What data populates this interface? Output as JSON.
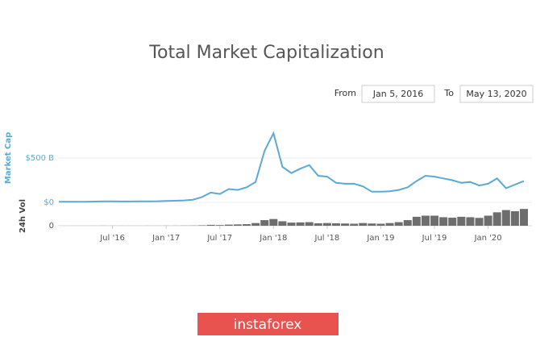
{
  "chart_data": {
    "type": "line",
    "title": "Total Market Capitalization",
    "controls": {
      "from_label": "From",
      "from_value": "Jan 5, 2016",
      "to_label": "To",
      "to_value": "May 13, 2020"
    },
    "y_label": "Market Cap",
    "volume_label": "24h Vol",
    "x": [
      "2016-01",
      "2016-02",
      "2016-03",
      "2016-04",
      "2016-05",
      "2016-06",
      "2016-07",
      "2016-08",
      "2016-09",
      "2016-10",
      "2016-11",
      "2016-12",
      "2017-01",
      "2017-02",
      "2017-03",
      "2017-04",
      "2017-05",
      "2017-06",
      "2017-07",
      "2017-08",
      "2017-09",
      "2017-10",
      "2017-11",
      "2017-12",
      "2018-01",
      "2018-02",
      "2018-03",
      "2018-04",
      "2018-05",
      "2018-06",
      "2018-07",
      "2018-08",
      "2018-09",
      "2018-10",
      "2018-11",
      "2018-12",
      "2019-01",
      "2019-02",
      "2019-03",
      "2019-04",
      "2019-05",
      "2019-06",
      "2019-07",
      "2019-08",
      "2019-09",
      "2019-10",
      "2019-11",
      "2019-12",
      "2020-01",
      "2020-02",
      "2020-03",
      "2020-04",
      "2020-05"
    ],
    "values": [
      7,
      6,
      7,
      7,
      9,
      11,
      11,
      10,
      10,
      11,
      12,
      13,
      16,
      18,
      22,
      30,
      60,
      110,
      95,
      150,
      140,
      170,
      230,
      580,
      780,
      400,
      330,
      380,
      420,
      300,
      290,
      220,
      210,
      210,
      180,
      120,
      120,
      125,
      140,
      170,
      240,
      300,
      290,
      270,
      250,
      220,
      230,
      190,
      210,
      270,
      160,
      200,
      240
    ],
    "volume_values": [
      0.2,
      0.2,
      0.2,
      0.2,
      0.3,
      0.5,
      0.4,
      0.3,
      0.3,
      0.3,
      0.4,
      0.4,
      0.5,
      0.6,
      0.8,
      1,
      2,
      4,
      3,
      5,
      6,
      7,
      12,
      25,
      30,
      20,
      14,
      15,
      16,
      11,
      12,
      11,
      10,
      9,
      12,
      10,
      9,
      12,
      16,
      25,
      40,
      45,
      45,
      38,
      36,
      40,
      38,
      35,
      45,
      60,
      70,
      65,
      75
    ],
    "color": "#5aa9d6",
    "volume_color": "#6d6d6d",
    "xlim": [
      "2016-01",
      "2020-05"
    ],
    "xticks": [
      {
        "value": "2016-07",
        "label": "Jul '16"
      },
      {
        "value": "2017-01",
        "label": "Jan '17"
      },
      {
        "value": "2017-07",
        "label": "Jul '17"
      },
      {
        "value": "2018-01",
        "label": "Jan '18"
      },
      {
        "value": "2018-07",
        "label": "Jul '18"
      },
      {
        "value": "2019-01",
        "label": "Jan '19"
      },
      {
        "value": "2019-07",
        "label": "Jul '19"
      },
      {
        "value": "2020-01",
        "label": "Jan '20"
      }
    ],
    "ylim": [
      0,
      900
    ],
    "yticks": [
      {
        "value": 0,
        "label": "$0"
      },
      {
        "value": 500,
        "label": "$500 B"
      }
    ],
    "y2lim": [
      0,
      90
    ],
    "y2ticks": [
      0
    ],
    "grid": true
  },
  "watermark": "instaforex"
}
